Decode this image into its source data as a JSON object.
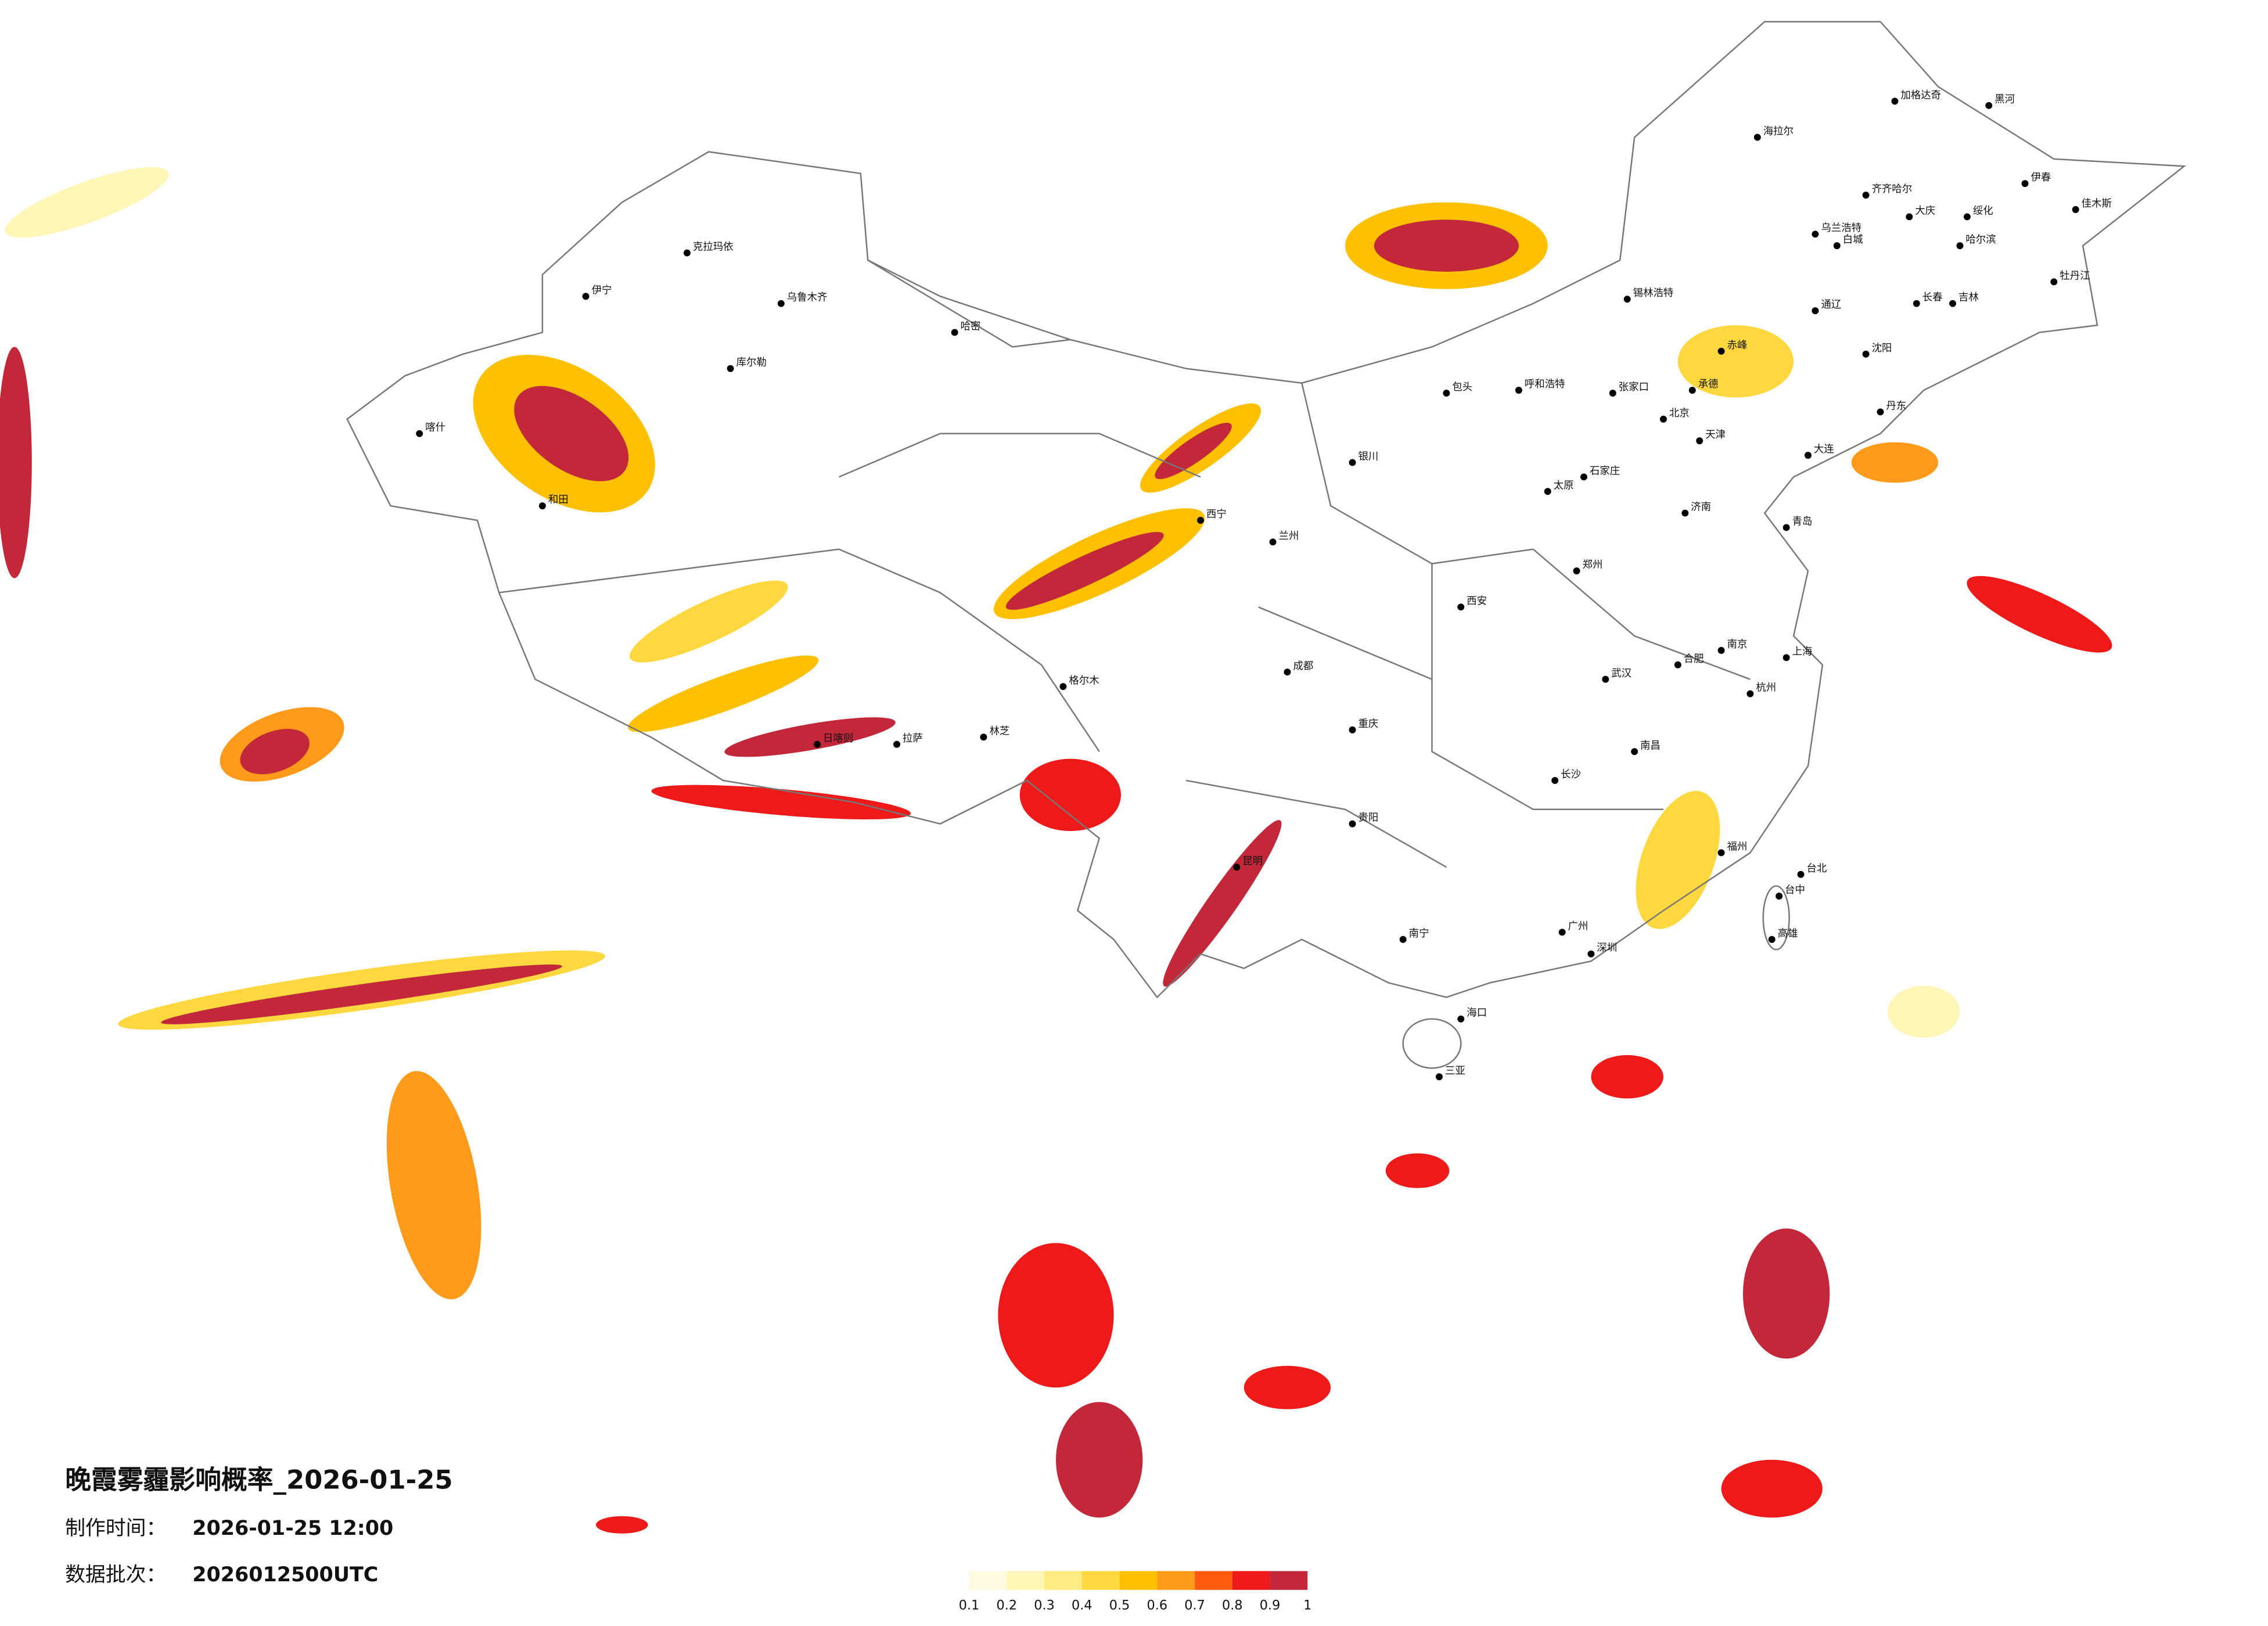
{
  "title": "晚霞雾霾影响概率_2026-01-25",
  "made_time": {
    "label": "制作时间：",
    "value": "2026-01-25 12:00"
  },
  "batch": {
    "label": "数据批次：",
    "value": "2026012500UTC"
  },
  "legend": {
    "colors": [
      "#fffbe0",
      "#fff6b8",
      "#ffec80",
      "#ffd840",
      "#ffc000",
      "#ff9a1a",
      "#ff5a10",
      "#ee1a1a",
      "#c2283a"
    ],
    "ticks": [
      0.1,
      0.2,
      0.3,
      0.4,
      0.5,
      0.6,
      0.7,
      0.8,
      0.9,
      1
    ]
  },
  "cities": [
    "加格达奇",
    "黑河",
    "海拉尔",
    "伊春",
    "齐齐哈尔",
    "大庆",
    "哈尔滨",
    "佳木斯",
    "绥化",
    "牡丹江",
    "长春",
    "吉林",
    "白城",
    "乌兰浩特",
    "通辽",
    "锡林浩特",
    "赤峰",
    "沈阳",
    "丹东",
    "大连",
    "北京",
    "天津",
    "承德",
    "张家口",
    "呼和浩特",
    "包头",
    "石家庄",
    "太原",
    "济南",
    "青岛",
    "郑州",
    "西安",
    "兰州",
    "银川",
    "西宁",
    "成都",
    "重庆",
    "贵阳",
    "昆明",
    "南宁",
    "广州",
    "深圳",
    "海口",
    "三亚",
    "长沙",
    "武汉",
    "南昌",
    "福州",
    "台北",
    "台中",
    "高雄",
    "杭州",
    "上海",
    "南京",
    "合肥",
    "拉萨",
    "日喀则",
    "林芝",
    "乌鲁木齐",
    "喀什",
    "和田",
    "哈密",
    "库尔勒",
    "伊宁",
    "克拉玛依",
    "格尔木"
  ]
}
